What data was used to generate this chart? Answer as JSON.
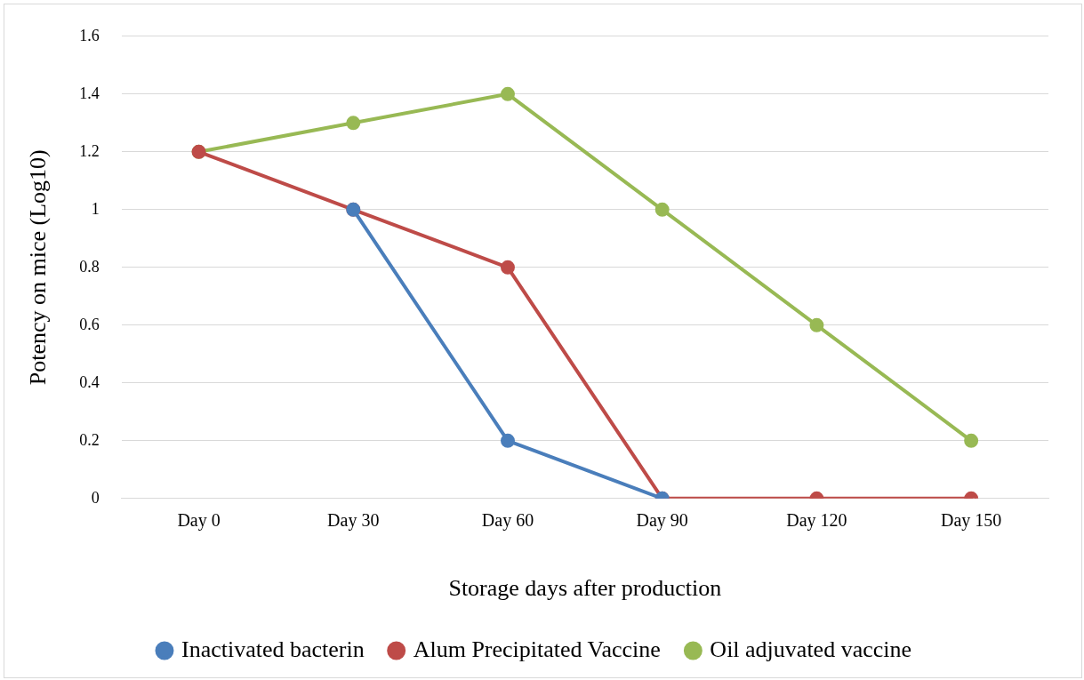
{
  "chart_data": {
    "type": "line",
    "xlabel": "Storage days after production",
    "ylabel": "Potency on mice (Log10)",
    "categories": [
      "Day 0",
      "Day 30",
      "Day 60",
      "Day 90",
      "Day 120",
      "Day 150"
    ],
    "series": [
      {
        "name": "Inactivated bacterin",
        "color": "#4a7ebb",
        "values": [
          null,
          1.0,
          0.2,
          0,
          null,
          null
        ]
      },
      {
        "name": "Alum Precipitated Vaccine",
        "color": "#be4b48",
        "values": [
          1.2,
          1.0,
          0.8,
          0,
          0,
          0
        ]
      },
      {
        "name": "Oil adjuvated vaccine",
        "color": "#98b954",
        "values": [
          1.2,
          1.3,
          1.4,
          1.0,
          0.6,
          0.2
        ]
      }
    ],
    "ylim": [
      0,
      1.6
    ],
    "yticks": [
      0,
      0.2,
      0.4,
      0.6,
      0.8,
      1,
      1.2,
      1.4,
      1.6
    ],
    "grid": "y",
    "legend": "bottom",
    "marker": "circle",
    "line_style": "solid"
  }
}
